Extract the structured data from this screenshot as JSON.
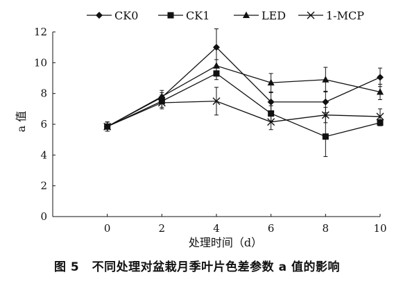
{
  "caption": {
    "figure_no": "图 5",
    "text": "不同处理对盆栽月季叶片色差参数 a 值的影响"
  },
  "chart_data": {
    "type": "line",
    "xlabel": "处理时间（d）",
    "ylabel": "a 值",
    "x": [
      0,
      2,
      4,
      6,
      8,
      10
    ],
    "xlim": [
      -2,
      10
    ],
    "ylim": [
      0,
      12
    ],
    "xticks": [
      "0",
      "2",
      "4",
      "6",
      "8",
      "10"
    ],
    "yticks": [
      "0",
      "2",
      "4",
      "6",
      "8",
      "10",
      "12"
    ],
    "legend_position": "top",
    "grid": false,
    "series": [
      {
        "name": "CK0",
        "marker": "diamond",
        "values": [
          5.85,
          7.75,
          11.0,
          7.45,
          7.45,
          9.05
        ],
        "err": [
          0.3,
          0.3,
          1.2,
          0.6,
          0.7,
          0.6
        ]
      },
      {
        "name": "CK1",
        "marker": "square",
        "values": [
          5.85,
          7.5,
          9.3,
          6.7,
          5.2,
          6.1
        ],
        "err": [
          0.3,
          0.4,
          0.4,
          0.5,
          1.3,
          0.2
        ]
      },
      {
        "name": "LED",
        "marker": "triangle",
        "values": [
          5.85,
          7.8,
          9.8,
          8.7,
          8.9,
          8.1
        ],
        "err": [
          0.3,
          0.4,
          0.4,
          0.6,
          0.8,
          0.5
        ]
      },
      {
        "name": "1-MCP",
        "marker": "x",
        "values": [
          5.85,
          7.4,
          7.5,
          6.15,
          6.6,
          6.5
        ],
        "err": [
          0.3,
          0.4,
          0.9,
          0.5,
          0.5,
          0.5
        ]
      }
    ]
  }
}
